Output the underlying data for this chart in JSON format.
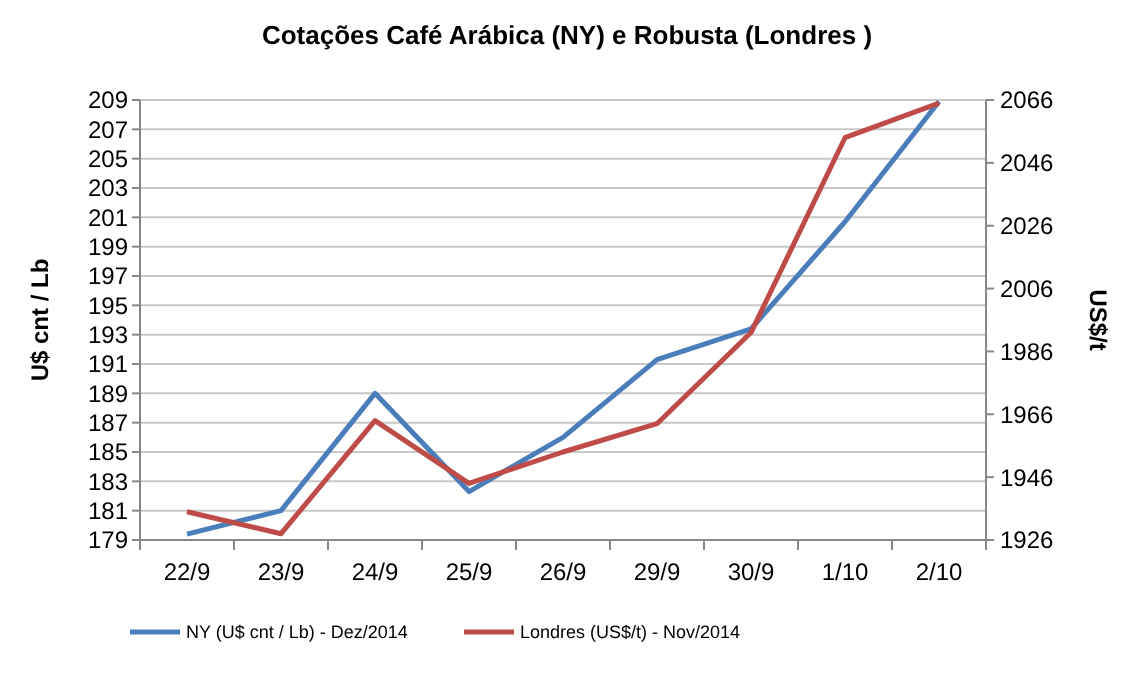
{
  "chart_data": {
    "type": "line",
    "title": "Cotações Café Arábica (NY) e Robusta (Londres )",
    "ylabel": "U$ cnt / Lb",
    "y2label": "US$/t",
    "categories": [
      "22/9",
      "23/9",
      "24/9",
      "25/9",
      "26/9",
      "29/9",
      "30/9",
      "1/10",
      "2/10"
    ],
    "series": [
      {
        "name": "NY (U$ cnt / Lb) - Dez/2014",
        "color": "#4a7ebb",
        "values": [
          179.4,
          181,
          189,
          182.3,
          186,
          191.3,
          193.4,
          200.7,
          208.9
        ]
      },
      {
        "name": "Londres (US$/t) - Nov/2014",
        "color": "#be4b48",
        "axis": "y2",
        "values": [
          1935,
          1928,
          1964,
          1944,
          1954,
          1963,
          1992,
          2054,
          2065
        ]
      }
    ],
    "ylim": [
      179,
      209
    ],
    "yticks": [
      179,
      181,
      183,
      185,
      187,
      189,
      191,
      193,
      195,
      197,
      199,
      201,
      203,
      205,
      207,
      209
    ],
    "y2lim": [
      1926,
      2066
    ],
    "y2ticks": [
      1926,
      1946,
      1966,
      1986,
      2006,
      2026,
      2046,
      2066
    ],
    "grid": "y",
    "legend": "bottom",
    "marker": "none",
    "line_style": "solid"
  }
}
